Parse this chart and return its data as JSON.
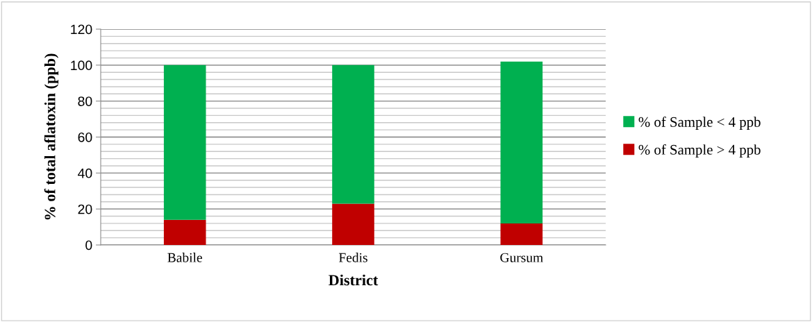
{
  "chart_data": {
    "type": "bar",
    "stacked": true,
    "xlabel": "District",
    "ylabel": "% of total aflatoxin (ppb)",
    "categories": [
      "Babile",
      "Fedis",
      "Gursum"
    ],
    "series": [
      {
        "name": "% of Sample > 4 ppb",
        "color": "#c00000",
        "values": [
          14,
          23,
          12
        ]
      },
      {
        "name": "% of Sample < 4 ppb",
        "color": "#00b050",
        "values": [
          86,
          77,
          90
        ]
      }
    ],
    "ylim": [
      0,
      120
    ],
    "yticks": [
      0,
      20,
      40,
      60,
      80,
      100,
      120
    ],
    "grid": "y",
    "legend": "right"
  }
}
